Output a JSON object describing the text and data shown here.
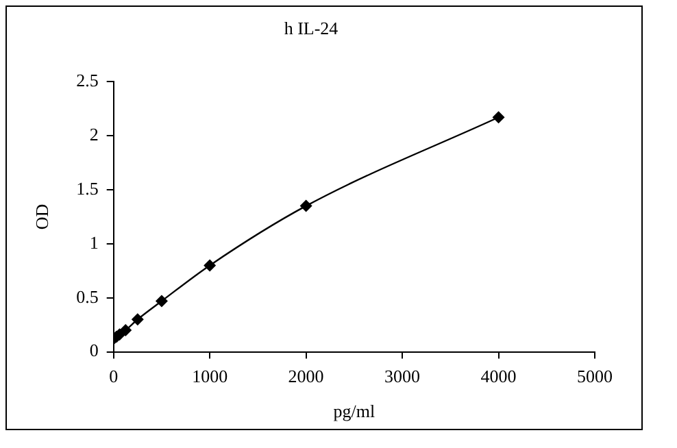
{
  "chart_data": {
    "type": "line",
    "title": "h IL-24",
    "xlabel": "pg/ml",
    "ylabel": "OD",
    "series": [
      {
        "color": "#000000",
        "x": [
          0,
          31.25,
          62.5,
          125,
          250,
          500,
          1000,
          2000,
          4000
        ],
        "values": [
          0.12,
          0.14,
          0.16,
          0.2,
          0.3,
          0.47,
          0.8,
          1.35,
          2.17
        ]
      }
    ],
    "xlim": [
      0,
      5000
    ],
    "xticks": [
      0,
      1000,
      2000,
      3000,
      4000,
      5000
    ],
    "ylim": [
      0,
      2.5
    ],
    "yticks": [
      0,
      0.5,
      1,
      1.5,
      2,
      2.5
    ],
    "grid": false,
    "legend": false,
    "marker": "diamond",
    "line_style": "solid"
  }
}
